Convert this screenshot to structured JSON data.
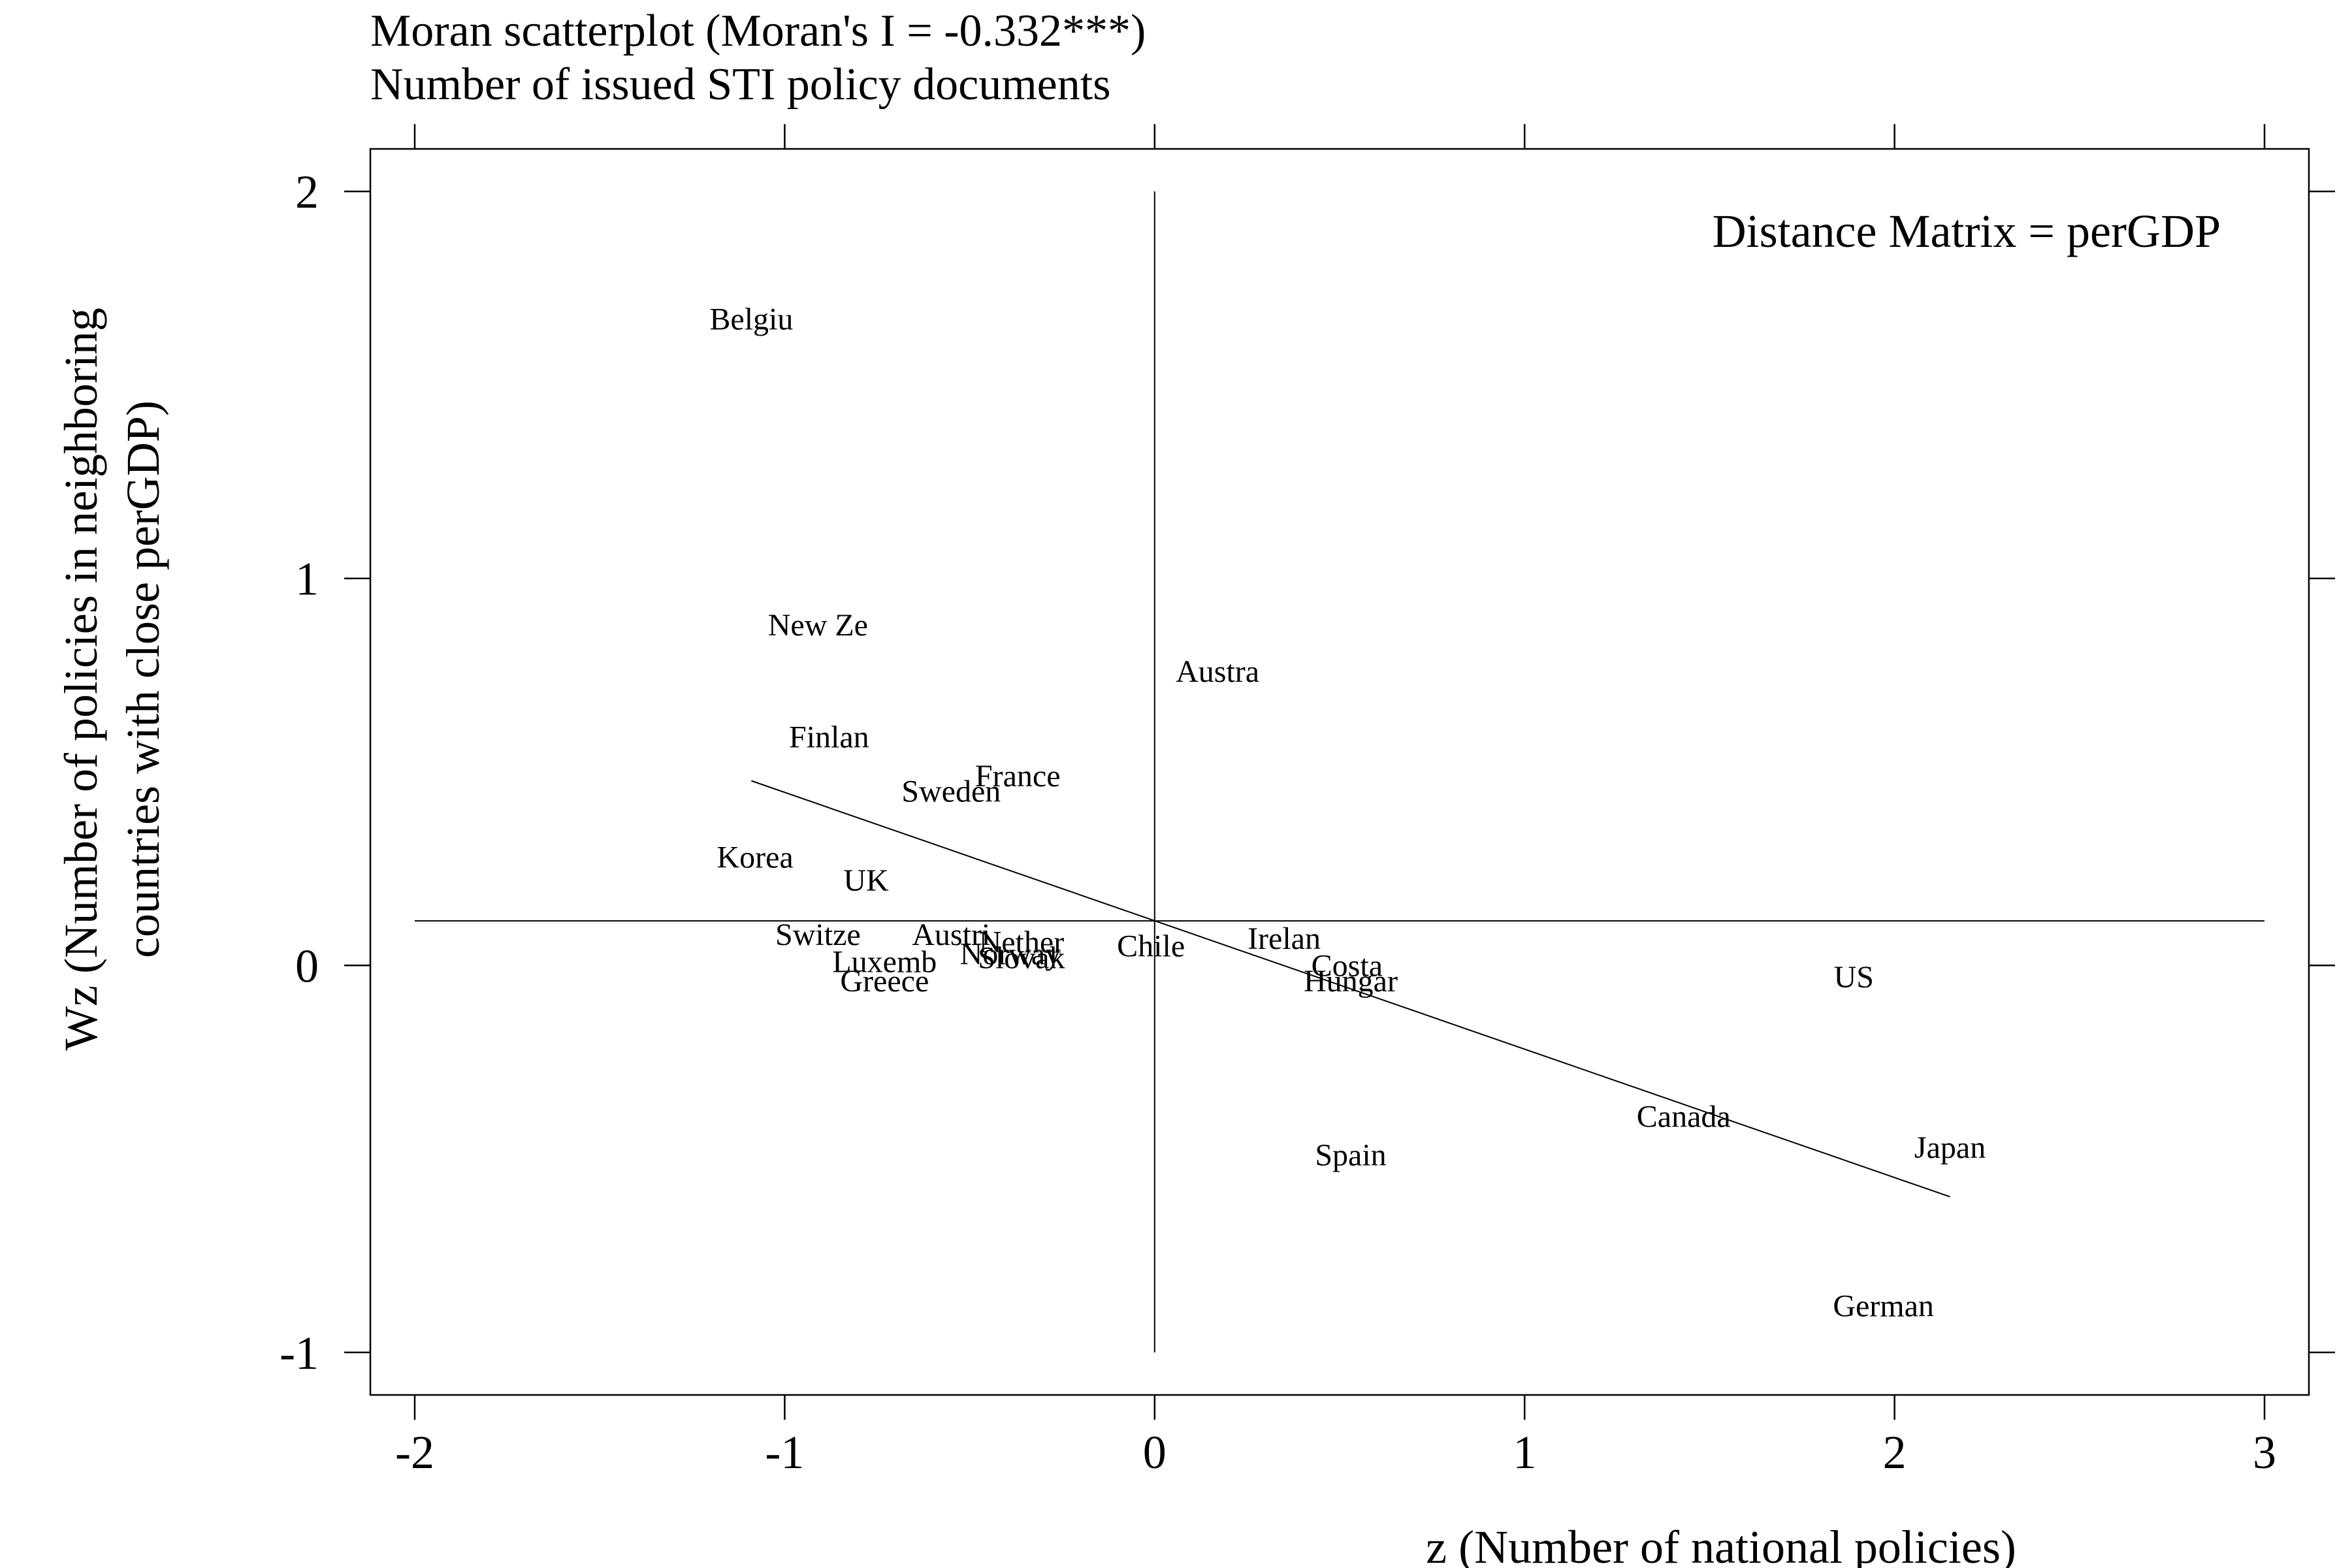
{
  "chart_data": {
    "type": "scatter",
    "title": "Moran scatterplot (Moran's I = -0.332***)",
    "subtitle": "Number of issued STI policy documents",
    "xlabel": "z (Number of national policies)",
    "ylabel_line1": "Wz (Number of policies in neighboring",
    "ylabel_line2": "countries with close perGDP)",
    "annotation": "Distance Matrix = perGDP",
    "xlim": [
      -2.12,
      3.12
    ],
    "ylim": [
      -1.11,
      2.11
    ],
    "x_ticks": [
      -2,
      -1,
      0,
      1,
      2,
      3
    ],
    "y_ticks": [
      -1,
      0,
      1,
      2
    ],
    "x_tick_labels": [
      "-2",
      "-1",
      "0",
      "1",
      "2",
      "3"
    ],
    "y_tick_labels": [
      "-1",
      "0",
      "1",
      "2"
    ],
    "reference_lines": {
      "vertical_x": 0,
      "horizontal_y": 0.115
    },
    "regression_line": {
      "x": [
        -1.09,
        2.15
      ],
      "y": [
        0.477,
        -0.598
      ]
    },
    "points": [
      {
        "label": "Belgiu",
        "x": -1.09,
        "y": 1.67
      },
      {
        "label": "New Ze",
        "x": -0.91,
        "y": 0.88
      },
      {
        "label": "Austra",
        "x": 0.17,
        "y": 0.76
      },
      {
        "label": "Finlan",
        "x": -0.88,
        "y": 0.59
      },
      {
        "label": "France",
        "x": -0.37,
        "y": 0.49
      },
      {
        "label": "Sweden",
        "x": -0.55,
        "y": 0.45
      },
      {
        "label": "Korea",
        "x": -1.08,
        "y": 0.28
      },
      {
        "label": "UK",
        "x": -0.78,
        "y": 0.22
      },
      {
        "label": "Switze",
        "x": -0.91,
        "y": 0.08
      },
      {
        "label": "Austri",
        "x": -0.55,
        "y": 0.08
      },
      {
        "label": "Nether",
        "x": -0.36,
        "y": 0.06
      },
      {
        "label": "Chile",
        "x": -0.01,
        "y": 0.05
      },
      {
        "label": "Irelan",
        "x": 0.35,
        "y": 0.07
      },
      {
        "label": "Norway",
        "x": -0.39,
        "y": 0.03
      },
      {
        "label": "Slovak",
        "x": -0.36,
        "y": 0.02
      },
      {
        "label": "Luxemb",
        "x": -0.73,
        "y": 0.01
      },
      {
        "label": "Costa",
        "x": 0.52,
        "y": 0.0
      },
      {
        "label": "Greece",
        "x": -0.73,
        "y": -0.04
      },
      {
        "label": "Hungar",
        "x": 0.53,
        "y": -0.04
      },
      {
        "label": "US",
        "x": 1.89,
        "y": -0.03
      },
      {
        "label": "Canada",
        "x": 1.43,
        "y": -0.39
      },
      {
        "label": "Japan",
        "x": 2.15,
        "y": -0.47
      },
      {
        "label": "Spain",
        "x": 0.53,
        "y": -0.49
      },
      {
        "label": "German",
        "x": 1.97,
        "y": -0.88
      }
    ]
  },
  "colors": {
    "foreground": "#000000",
    "background": "#ffffff"
  }
}
